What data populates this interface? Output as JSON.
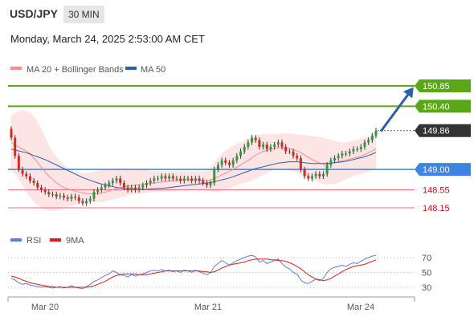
{
  "header": {
    "symbol": "USD/JPY",
    "timeframe": "30 MIN",
    "datetime": "Monday, March 24, 2025 2:53:00 AM CET"
  },
  "legend": {
    "ma20_label": "MA 20 + Bollinger Bands",
    "ma50_label": "MA 50",
    "ma20_color": "#ff8a8a",
    "ma50_color": "#2c5fa8"
  },
  "rsi_legend": {
    "rsi_label": "RSI",
    "ma_label": "9MA",
    "rsi_color": "#5b7fd6",
    "ma_color": "#e01c1c"
  },
  "colors": {
    "resistance": "#5aa817",
    "current": "#333333",
    "pivot": "#3d85e0",
    "support": "#ee6f76",
    "support_text": "#c0131b",
    "arrow": "#2c5fa8",
    "band_fill": "#fde0e0"
  },
  "chart_data": {
    "type": "candlestick",
    "x_labels": [
      "Mar 20",
      "Mar 21",
      "Mar 24"
    ],
    "price_range": [
      147.85,
      151.1
    ],
    "levels": [
      {
        "value": 150.85,
        "label": "150.85",
        "kind": "resistance"
      },
      {
        "value": 150.4,
        "label": "150.40",
        "kind": "resistance"
      },
      {
        "value": 149.86,
        "label": "149.86",
        "kind": "current"
      },
      {
        "value": 149.0,
        "label": "149.00",
        "kind": "pivot"
      },
      {
        "value": 148.55,
        "label": "148.55",
        "kind": "support"
      },
      {
        "value": 148.15,
        "label": "148.15",
        "kind": "support"
      }
    ],
    "rsi_ticks": [
      70,
      50,
      30
    ],
    "close": [
      149.7,
      149.3,
      149.0,
      148.9,
      148.85,
      148.75,
      148.7,
      148.6,
      148.55,
      148.5,
      148.45,
      148.45,
      148.4,
      148.42,
      148.38,
      148.35,
      148.4,
      148.38,
      148.3,
      148.25,
      148.3,
      148.35,
      148.5,
      148.55,
      148.6,
      148.65,
      148.7,
      148.75,
      148.8,
      148.7,
      148.6,
      148.55,
      148.6,
      148.55,
      148.6,
      148.65,
      148.7,
      148.75,
      148.8,
      148.8,
      148.85,
      148.8,
      148.85,
      148.8,
      148.8,
      148.75,
      148.8,
      148.8,
      148.75,
      148.8,
      148.75,
      148.7,
      148.65,
      148.7,
      149.0,
      149.1,
      149.2,
      149.15,
      149.1,
      149.2,
      149.3,
      149.4,
      149.5,
      149.6,
      149.7,
      149.65,
      149.5,
      149.55,
      149.45,
      149.5,
      149.55,
      149.6,
      149.5,
      149.4,
      149.4,
      149.3,
      149.25,
      149.0,
      148.85,
      148.8,
      148.85,
      148.9,
      148.85,
      148.9,
      149.1,
      149.2,
      149.25,
      149.3,
      149.35,
      149.35,
      149.4,
      149.45,
      149.45,
      149.5,
      149.6,
      149.65,
      149.75,
      149.86
    ],
    "open": [
      149.9,
      149.7,
      149.3,
      149.0,
      148.9,
      148.85,
      148.75,
      148.7,
      148.6,
      148.55,
      148.5,
      148.45,
      148.45,
      148.4,
      148.42,
      148.38,
      148.35,
      148.4,
      148.38,
      148.3,
      148.25,
      148.3,
      148.35,
      148.5,
      148.55,
      148.6,
      148.65,
      148.7,
      148.75,
      148.8,
      148.7,
      148.6,
      148.55,
      148.6,
      148.55,
      148.6,
      148.65,
      148.7,
      148.75,
      148.8,
      148.8,
      148.85,
      148.8,
      148.85,
      148.8,
      148.8,
      148.75,
      148.8,
      148.8,
      148.75,
      148.8,
      148.75,
      148.7,
      148.65,
      148.7,
      149.0,
      149.1,
      149.2,
      149.15,
      149.1,
      149.2,
      149.3,
      149.4,
      149.5,
      149.6,
      149.7,
      149.65,
      149.5,
      149.55,
      149.45,
      149.5,
      149.55,
      149.6,
      149.5,
      149.4,
      149.4,
      149.3,
      149.25,
      149.0,
      148.85,
      148.8,
      148.85,
      148.9,
      148.85,
      148.9,
      149.1,
      149.2,
      149.25,
      149.3,
      149.35,
      149.35,
      149.4,
      149.45,
      149.45,
      149.5,
      149.6,
      149.65,
      149.75
    ],
    "ma20": [
      149.6,
      149.55,
      149.5,
      149.45,
      149.4,
      149.35,
      149.25,
      149.15,
      149.05,
      148.95,
      148.85,
      148.78,
      148.7,
      148.65,
      148.6,
      148.57,
      148.54,
      148.52,
      148.5,
      148.48,
      148.47,
      148.46,
      148.46,
      148.47,
      148.48,
      148.5,
      148.52,
      148.55,
      148.58,
      148.6,
      148.62,
      148.63,
      148.64,
      148.65,
      148.66,
      148.67,
      148.68,
      148.69,
      148.7,
      148.71,
      148.72,
      148.73,
      148.74,
      148.75,
      148.76,
      148.76,
      148.77,
      148.77,
      148.77,
      148.77,
      148.77,
      148.76,
      148.76,
      148.77,
      148.8,
      148.84,
      148.88,
      148.92,
      148.96,
      149.0,
      149.05,
      149.1,
      149.15,
      149.2,
      149.26,
      149.32,
      149.36,
      149.4,
      149.42,
      149.44,
      149.46,
      149.48,
      149.48,
      149.47,
      149.46,
      149.44,
      149.41,
      149.37,
      149.32,
      149.27,
      149.22,
      149.18,
      149.14,
      149.12,
      149.12,
      149.13,
      149.15,
      149.17,
      149.19,
      149.21,
      149.23,
      149.25,
      149.27,
      149.3,
      149.33,
      149.37,
      149.41,
      149.46
    ],
    "ma50": [
      149.45,
      149.43,
      149.41,
      149.39,
      149.37,
      149.34,
      149.31,
      149.28,
      149.25,
      149.22,
      149.18,
      149.14,
      149.1,
      149.06,
      149.02,
      148.98,
      148.94,
      148.9,
      148.86,
      148.82,
      148.79,
      148.76,
      148.73,
      148.7,
      148.68,
      148.66,
      148.64,
      148.62,
      148.6,
      148.59,
      148.58,
      148.57,
      148.57,
      148.56,
      148.56,
      148.56,
      148.56,
      148.57,
      148.57,
      148.58,
      148.58,
      148.59,
      148.6,
      148.61,
      148.62,
      148.63,
      148.64,
      148.65,
      148.66,
      148.67,
      148.68,
      148.69,
      148.7,
      148.71,
      148.73,
      148.75,
      148.77,
      148.79,
      148.81,
      148.84,
      148.87,
      148.9,
      148.93,
      148.96,
      148.99,
      149.02,
      149.04,
      149.06,
      149.08,
      149.1,
      149.12,
      149.14,
      149.15,
      149.16,
      149.17,
      149.17,
      149.17,
      149.16,
      149.15,
      149.14,
      149.13,
      149.13,
      149.13,
      149.13,
      149.13,
      149.14,
      149.15,
      149.16,
      149.17,
      149.18,
      149.2,
      149.22,
      149.24,
      149.26,
      149.28,
      149.31,
      149.34,
      149.38
    ],
    "band_upper": [
      150.2,
      150.25,
      150.3,
      150.32,
      150.3,
      150.25,
      150.18,
      150.05,
      149.9,
      149.72,
      149.55,
      149.4,
      149.28,
      149.18,
      149.1,
      149.03,
      148.98,
      148.95,
      148.93,
      148.92,
      148.92,
      148.93,
      148.95,
      148.97,
      148.99,
      149.0,
      149.0,
      149.01,
      149.02,
      149.02,
      149.02,
      149.02,
      149.02,
      149.02,
      149.01,
      149.0,
      148.99,
      148.98,
      148.97,
      148.97,
      148.97,
      148.97,
      148.97,
      148.97,
      148.97,
      148.97,
      148.97,
      148.97,
      148.97,
      148.97,
      148.97,
      148.97,
      148.98,
      149.05,
      149.15,
      149.25,
      149.35,
      149.42,
      149.48,
      149.52,
      149.56,
      149.6,
      149.64,
      149.68,
      149.72,
      149.76,
      149.78,
      149.78,
      149.78,
      149.78,
      149.78,
      149.79,
      149.8,
      149.8,
      149.8,
      149.79,
      149.78,
      149.77,
      149.76,
      149.75,
      149.74,
      149.73,
      149.72,
      149.7,
      149.68,
      149.66,
      149.64,
      149.62,
      149.6,
      149.6,
      149.62,
      149.64,
      149.66,
      149.68,
      149.7,
      149.72,
      149.75,
      149.8
    ],
    "band_lower": [
      149.0,
      148.9,
      148.78,
      148.65,
      148.5,
      148.38,
      148.28,
      148.2,
      148.14,
      148.1,
      148.08,
      148.08,
      148.09,
      148.11,
      148.14,
      148.17,
      148.2,
      148.22,
      148.24,
      148.26,
      148.27,
      148.28,
      148.28,
      148.28,
      148.28,
      148.29,
      148.31,
      148.33,
      148.35,
      148.38,
      148.4,
      148.42,
      148.44,
      148.45,
      148.46,
      148.47,
      148.48,
      148.49,
      148.5,
      148.5,
      148.51,
      148.51,
      148.52,
      148.52,
      148.53,
      148.53,
      148.54,
      148.54,
      148.55,
      148.55,
      148.55,
      148.55,
      148.55,
      148.52,
      148.5,
      148.5,
      148.52,
      148.55,
      148.58,
      148.62,
      148.65,
      148.68,
      148.7,
      148.72,
      148.76,
      148.8,
      148.84,
      148.88,
      148.92,
      148.96,
      149.0,
      149.02,
      149.02,
      149.0,
      148.98,
      148.96,
      148.93,
      148.9,
      148.86,
      148.82,
      148.78,
      148.74,
      148.7,
      148.68,
      148.66,
      148.66,
      148.68,
      148.7,
      148.74,
      148.78,
      148.82,
      148.85,
      148.88,
      148.9,
      148.92,
      148.95,
      148.98,
      149.0
    ],
    "rsi": [
      42,
      40,
      36,
      34,
      35,
      33,
      32,
      31,
      30,
      31,
      30,
      29,
      30,
      31,
      29,
      30,
      32,
      30,
      29,
      28,
      31,
      34,
      38,
      40,
      43,
      46,
      48,
      52,
      50,
      47,
      46,
      44,
      47,
      45,
      47,
      48,
      50,
      52,
      53,
      52,
      54,
      52,
      53,
      51,
      52,
      50,
      53,
      52,
      50,
      53,
      51,
      49,
      47,
      50,
      58,
      62,
      66,
      63,
      60,
      63,
      66,
      68,
      70,
      72,
      73,
      71,
      64,
      66,
      62,
      64,
      66,
      68,
      62,
      57,
      55,
      50,
      48,
      40,
      36,
      35,
      38,
      41,
      39,
      42,
      50,
      55,
      57,
      58,
      60,
      58,
      61,
      63,
      62,
      65,
      68,
      70,
      72,
      73
    ],
    "rsi_ma": [
      45,
      44,
      42,
      40,
      38,
      36,
      35,
      34,
      33,
      32,
      31,
      31,
      30,
      30,
      30,
      30,
      30,
      30,
      30,
      30,
      30,
      31,
      32,
      34,
      36,
      38,
      41,
      44,
      46,
      47,
      48,
      48,
      48,
      48,
      47,
      47,
      47,
      48,
      49,
      50,
      51,
      52,
      52,
      52,
      52,
      52,
      52,
      52,
      52,
      52,
      52,
      51,
      51,
      50,
      51,
      53,
      56,
      58,
      60,
      61,
      62,
      63,
      64,
      66,
      67,
      68,
      68,
      68,
      68,
      67,
      67,
      66,
      66,
      65,
      63,
      61,
      58,
      55,
      51,
      47,
      44,
      41,
      40,
      39,
      40,
      42,
      45,
      48,
      51,
      54,
      56,
      58,
      59,
      60,
      61,
      63,
      65,
      67
    ]
  }
}
